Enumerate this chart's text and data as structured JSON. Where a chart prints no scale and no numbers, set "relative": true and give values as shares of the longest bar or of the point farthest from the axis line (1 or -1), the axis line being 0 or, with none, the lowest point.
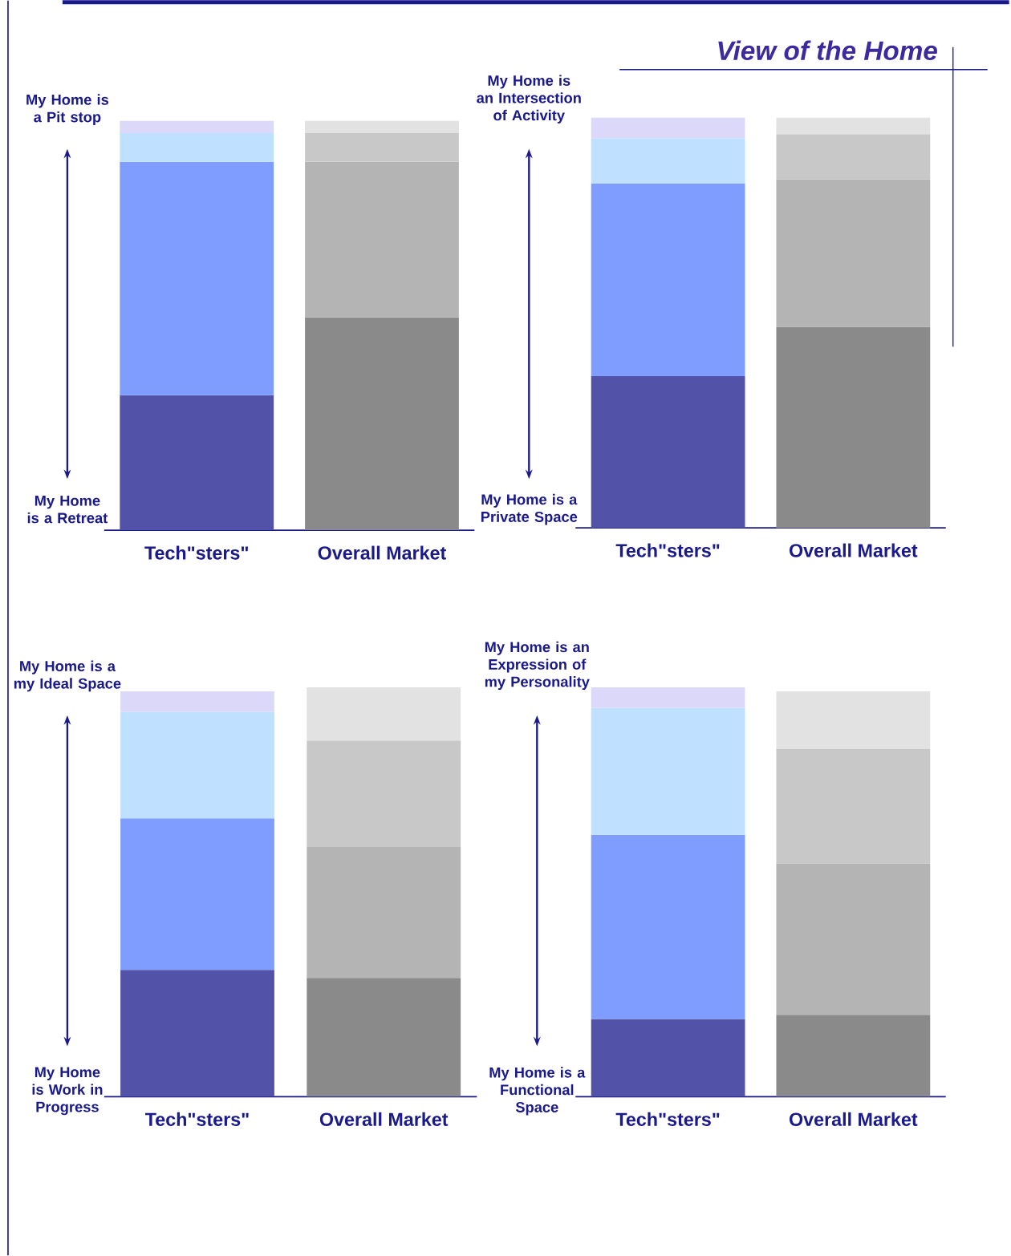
{
  "chart_data": [
    {
      "type": "other",
      "title": "View of the Home"
    },
    {
      "type": "bar",
      "stacked": true,
      "relative": true,
      "categories": [
        "Tech\"sters\"",
        "Overall Market"
      ],
      "series": [
        {
          "colors": [
            "#5252a8",
            "#8a8a8a"
          ],
          "values": [
            0.33,
            0.52
          ]
        },
        {
          "colors": [
            "#7f9dff",
            "#b4b4b4"
          ],
          "values": [
            0.57,
            0.38
          ]
        },
        {
          "colors": [
            "#bfe0ff",
            "#c8c8c8"
          ],
          "values": [
            0.07,
            0.07
          ]
        },
        {
          "colors": [
            "#dcd8fa",
            "#e2e2e2"
          ],
          "values": [
            0.03,
            0.03
          ]
        }
      ],
      "annotations": [
        "My Home is a Pit stop",
        "My Home is a Retreat"
      ]
    },
    {
      "type": "bar",
      "stacked": true,
      "relative": true,
      "categories": [
        "Tech\"sters\"",
        "Overall Market"
      ],
      "series": [
        {
          "colors": [
            "#5252a8",
            "#8a8a8a"
          ],
          "values": [
            0.37,
            0.49
          ]
        },
        {
          "colors": [
            "#7f9dff",
            "#b4b4b4"
          ],
          "values": [
            0.47,
            0.36
          ]
        },
        {
          "colors": [
            "#bfe0ff",
            "#c8c8c8"
          ],
          "values": [
            0.11,
            0.11
          ]
        },
        {
          "colors": [
            "#dcd8fa",
            "#e2e2e2"
          ],
          "values": [
            0.05,
            0.04
          ]
        }
      ],
      "annotations": [
        "My Home is an Intersection of Activity",
        "My Home is a Private Space"
      ]
    },
    {
      "type": "bar",
      "stacked": true,
      "relative": true,
      "categories": [
        "Tech\"sters\"",
        "Overall Market"
      ],
      "series": [
        {
          "colors": [
            "#5252a8",
            "#8a8a8a"
          ],
          "values": [
            0.31,
            0.29
          ]
        },
        {
          "colors": [
            "#7f9dff",
            "#b4b4b4"
          ],
          "values": [
            0.37,
            0.32
          ]
        },
        {
          "colors": [
            "#bfe0ff",
            "#c8c8c8"
          ],
          "values": [
            0.26,
            0.26
          ]
        },
        {
          "colors": [
            "#dcd8fa",
            "#e2e2e2"
          ],
          "values": [
            0.05,
            0.13
          ]
        }
      ],
      "annotations": [
        "My Home is a my Ideal Space",
        "My Home is Work in Progress"
      ]
    },
    {
      "type": "bar",
      "stacked": true,
      "relative": true,
      "categories": [
        "Tech\"sters\"",
        "Overall Market"
      ],
      "series": [
        {
          "colors": [
            "#5252a8",
            "#8a8a8a"
          ],
          "values": [
            0.19,
            0.2
          ]
        },
        {
          "colors": [
            "#7f9dff",
            "#b4b4b4"
          ],
          "values": [
            0.45,
            0.37
          ]
        },
        {
          "colors": [
            "#bfe0ff",
            "#c8c8c8"
          ],
          "values": [
            0.31,
            0.28
          ]
        },
        {
          "colors": [
            "#dcd8fa",
            "#e2e2e2"
          ],
          "values": [
            0.05,
            0.14
          ]
        }
      ],
      "annotations": [
        "My Home is an Expression of my Personality",
        "My Home is a Functional Space"
      ]
    }
  ]
}
